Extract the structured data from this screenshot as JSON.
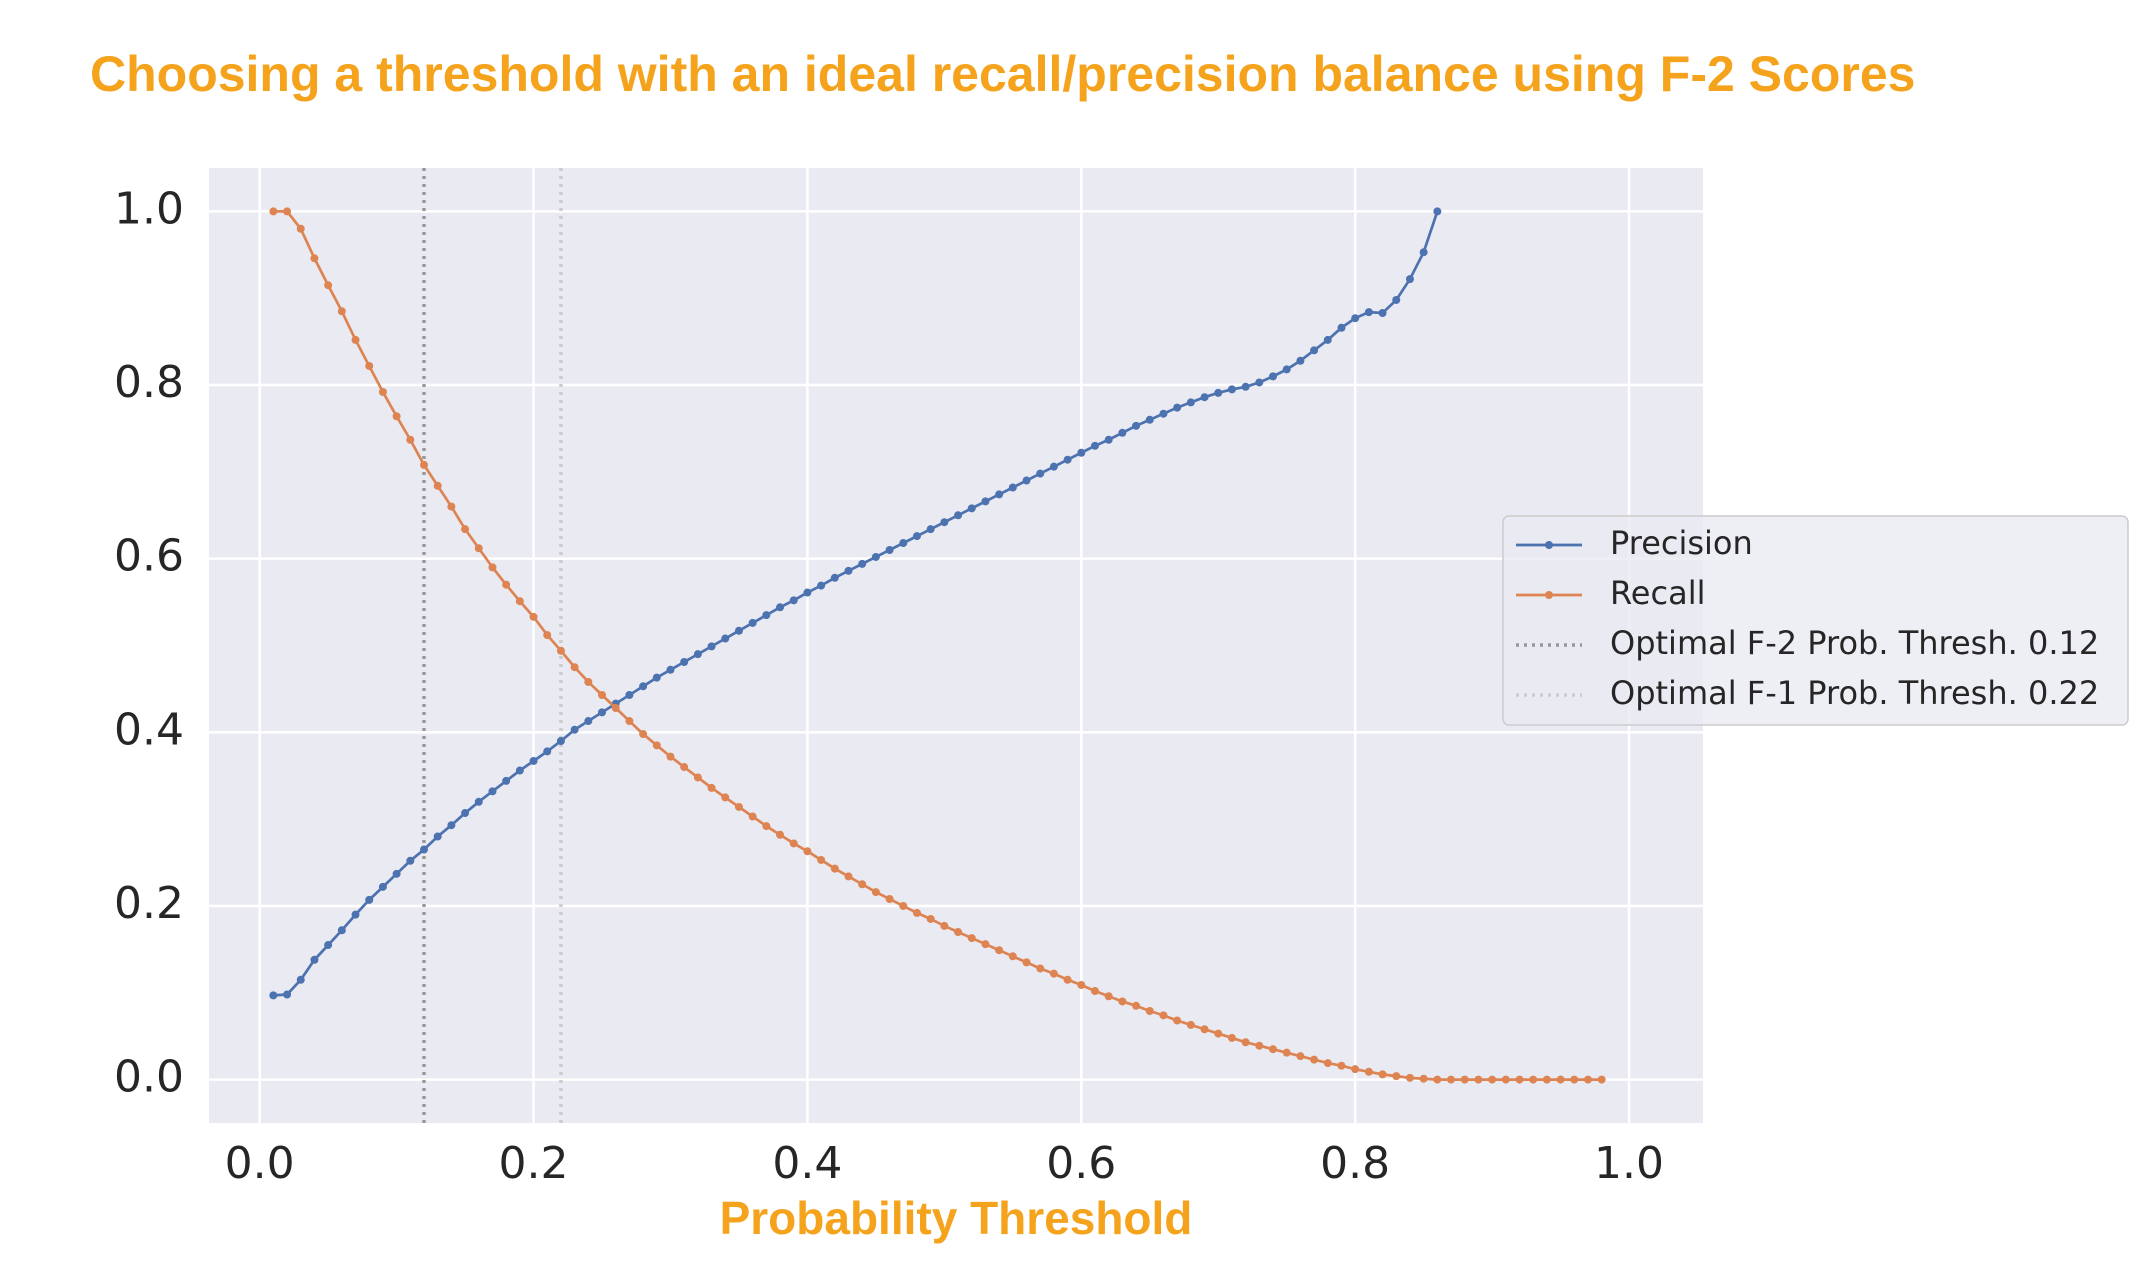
{
  "chart_data": {
    "type": "line",
    "title": "Choosing a threshold with an ideal recall/precision balance using F-2 Scores",
    "xlabel": "Probability Threshold",
    "x": [
      0.01,
      0.02,
      0.03,
      0.04,
      0.05,
      0.06,
      0.07,
      0.08,
      0.09,
      0.1,
      0.11,
      0.12,
      0.13,
      0.14,
      0.15,
      0.16,
      0.17,
      0.18,
      0.19,
      0.2,
      0.21,
      0.22,
      0.23,
      0.24,
      0.25,
      0.26,
      0.27,
      0.28,
      0.29,
      0.3,
      0.31,
      0.32,
      0.33,
      0.34,
      0.35,
      0.36,
      0.37,
      0.38,
      0.39,
      0.4,
      0.41,
      0.42,
      0.43,
      0.44,
      0.45,
      0.46,
      0.47,
      0.48,
      0.49,
      0.5,
      0.51,
      0.52,
      0.53,
      0.54,
      0.55,
      0.56,
      0.57,
      0.58,
      0.59,
      0.6,
      0.61,
      0.62,
      0.63,
      0.64,
      0.65,
      0.66,
      0.67,
      0.68,
      0.69,
      0.7,
      0.71,
      0.72,
      0.73,
      0.74,
      0.75,
      0.76,
      0.77,
      0.78,
      0.79,
      0.8,
      0.81,
      0.82,
      0.83,
      0.84,
      0.85,
      0.86,
      0.87,
      0.88,
      0.89,
      0.9,
      0.91,
      0.92,
      0.93,
      0.94,
      0.95,
      0.96,
      0.97,
      0.98
    ],
    "series": [
      {
        "name": "Precision",
        "color": "#4c72b0",
        "values": [
          0.097,
          0.098,
          0.115,
          0.138,
          0.155,
          0.172,
          0.19,
          0.207,
          0.222,
          0.237,
          0.252,
          0.265,
          0.28,
          0.293,
          0.307,
          0.32,
          0.332,
          0.344,
          0.356,
          0.367,
          0.378,
          0.39,
          0.403,
          0.413,
          0.423,
          0.433,
          0.443,
          0.453,
          0.463,
          0.472,
          0.481,
          0.49,
          0.499,
          0.508,
          0.517,
          0.526,
          0.535,
          0.544,
          0.552,
          0.561,
          0.569,
          0.578,
          0.586,
          0.594,
          0.602,
          0.61,
          0.618,
          0.626,
          0.634,
          0.642,
          0.65,
          0.658,
          0.666,
          0.674,
          0.682,
          0.69,
          0.698,
          0.706,
          0.714,
          0.722,
          0.73,
          0.737,
          0.745,
          0.753,
          0.76,
          0.767,
          0.774,
          0.78,
          0.786,
          0.791,
          0.795,
          0.798,
          0.803,
          0.81,
          0.818,
          0.828,
          0.84,
          0.852,
          0.866,
          0.877,
          0.884,
          0.883,
          0.898,
          0.922,
          0.953,
          1.0,
          null,
          null,
          null,
          null,
          null,
          null,
          null,
          null,
          null,
          null,
          null,
          null
        ]
      },
      {
        "name": "Recall",
        "color": "#dd8452",
        "values": [
          1.0,
          1.0,
          0.98,
          0.946,
          0.915,
          0.885,
          0.852,
          0.822,
          0.792,
          0.764,
          0.737,
          0.708,
          0.684,
          0.66,
          0.634,
          0.612,
          0.59,
          0.57,
          0.551,
          0.533,
          0.512,
          0.494,
          0.475,
          0.458,
          0.443,
          0.428,
          0.413,
          0.398,
          0.385,
          0.372,
          0.36,
          0.348,
          0.336,
          0.325,
          0.314,
          0.303,
          0.292,
          0.282,
          0.272,
          0.263,
          0.253,
          0.243,
          0.234,
          0.225,
          0.216,
          0.208,
          0.2,
          0.192,
          0.185,
          0.177,
          0.17,
          0.163,
          0.156,
          0.149,
          0.142,
          0.135,
          0.128,
          0.122,
          0.115,
          0.109,
          0.102,
          0.096,
          0.09,
          0.085,
          0.079,
          0.074,
          0.068,
          0.063,
          0.058,
          0.053,
          0.048,
          0.043,
          0.039,
          0.035,
          0.031,
          0.027,
          0.023,
          0.019,
          0.016,
          0.012,
          0.009,
          0.006,
          0.004,
          0.002,
          0.001,
          0,
          0,
          0,
          0,
          0,
          0,
          0,
          0,
          0,
          0,
          0,
          0,
          0
        ]
      }
    ],
    "vlines": [
      {
        "x": 0.12,
        "label": "Optimal F-2 Prob. Thresh. 0.12",
        "color": "#999999"
      },
      {
        "x": 0.22,
        "label": "Optimal F-1 Prob. Thresh. 0.22",
        "color": "#cccccc"
      }
    ],
    "xlim": [
      -0.037,
      1.054
    ],
    "ylim": [
      -0.05,
      1.05
    ],
    "xticks": [
      {
        "value": 0,
        "label": "0.0"
      },
      {
        "value": 0.2,
        "label": "0.2"
      },
      {
        "value": 0.4,
        "label": "0.4"
      },
      {
        "value": 0.6,
        "label": "0.6"
      },
      {
        "value": 0.8,
        "label": "0.8"
      },
      {
        "value": 1,
        "label": "1.0"
      }
    ],
    "yticks": [
      {
        "value": 0,
        "label": "0.0"
      },
      {
        "value": 0.2,
        "label": "0.2"
      },
      {
        "value": 0.4,
        "label": "0.4"
      },
      {
        "value": 0.6,
        "label": "0.6"
      },
      {
        "value": 0.8,
        "label": "0.8"
      },
      {
        "value": 1,
        "label": "1.0"
      }
    ],
    "grid": true,
    "legend": "right"
  }
}
